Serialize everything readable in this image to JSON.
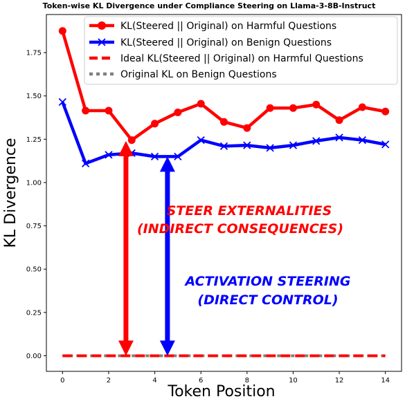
{
  "chart_data": {
    "type": "line",
    "title": "Token-wise KL Divergence under Compliance Steering on Llama-3-8B-Instruct",
    "xlabel": "Token Position",
    "ylabel": "KL Divergence",
    "xlim": [
      -0.7,
      14.7
    ],
    "ylim": [
      -0.09,
      1.97
    ],
    "xticks": [
      0,
      2,
      4,
      6,
      8,
      10,
      12,
      14
    ],
    "yticks": [
      0.0,
      0.25,
      0.5,
      0.75,
      1.0,
      1.25,
      1.5,
      1.75
    ],
    "ytick_labels": [
      "0.00",
      "0.25",
      "0.50",
      "0.75",
      "1.00",
      "1.25",
      "1.50",
      "1.75"
    ],
    "grid": false,
    "legend_position": "top-right",
    "x": [
      0,
      1,
      2,
      3,
      4,
      5,
      6,
      7,
      8,
      9,
      10,
      11,
      12,
      13,
      14
    ],
    "series": [
      {
        "name": "KL(Steered || Original) on Harmful Questions",
        "color": "#ff0000",
        "style": "solid",
        "marker": "circle",
        "values": [
          1.875,
          1.415,
          1.415,
          1.245,
          1.34,
          1.405,
          1.455,
          1.35,
          1.315,
          1.43,
          1.43,
          1.45,
          1.36,
          1.435,
          1.41
        ]
      },
      {
        "name": "KL(Steered || Original) on Benign Questions",
        "color": "#0000ff",
        "style": "solid",
        "marker": "x",
        "values": [
          1.465,
          1.11,
          1.16,
          1.17,
          1.15,
          1.15,
          1.245,
          1.21,
          1.215,
          1.2,
          1.215,
          1.24,
          1.26,
          1.245,
          1.22
        ]
      },
      {
        "name": "Ideal KL(Steered || Original) on Harmful Questions",
        "color": "#ff0000",
        "style": "dashed",
        "marker": "none",
        "values": [
          0,
          0,
          0,
          0,
          0,
          0,
          0,
          0,
          0,
          0,
          0,
          0,
          0,
          0,
          0
        ]
      },
      {
        "name": "Original KL on Benign Questions",
        "color": "#808080",
        "style": "dotted",
        "marker": "none",
        "values": [
          0,
          0,
          0,
          0,
          0,
          0,
          0,
          0,
          0,
          0,
          0,
          0,
          0,
          0,
          0
        ]
      }
    ],
    "annotations": [
      {
        "text_lines": [
          "STEER EXTERNALITIES",
          "(INDIRECT CONSEQUENCES)"
        ],
        "color": "#ff0000",
        "arrow_x": 2.75,
        "arrow_y_from": 0.0,
        "arrow_y_to": 1.24
      },
      {
        "text_lines": [
          "ACTIVATION STEERING",
          "(DIRECT CONTROL)"
        ],
        "color": "#0000ff",
        "arrow_x": 4.55,
        "arrow_y_from": 0.0,
        "arrow_y_to": 1.15
      }
    ]
  }
}
